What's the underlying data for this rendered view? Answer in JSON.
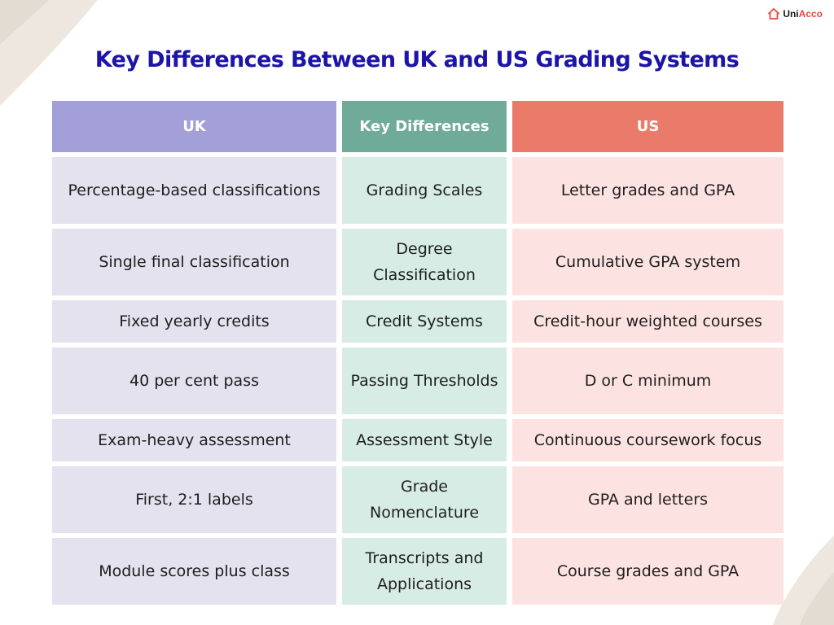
{
  "brand": {
    "name_part1": "Uni",
    "name_part2": "Acco",
    "icon": "house-icon",
    "accent_color": "#e8483c"
  },
  "title": "Key Differences Between UK and US Grading Systems",
  "colors": {
    "title": "#1d14a8",
    "uk_header": "#a39fd8",
    "key_header": "#6fab98",
    "us_header": "#ea7a6a",
    "uk_cell": "#e3e2ee",
    "key_cell": "#d6ece4",
    "us_cell": "#fde2e2"
  },
  "table": {
    "headers": {
      "uk": "UK",
      "key": "Key Differences",
      "us": "US"
    },
    "rows": [
      {
        "uk": "Percentage-based classifications",
        "key": "Grading Scales",
        "us": "Letter grades and GPA"
      },
      {
        "uk": "Single final classification",
        "key": "Degree Classification",
        "us": "Cumulative GPA system"
      },
      {
        "uk": "Fixed yearly credits",
        "key": "Credit Systems",
        "us": "Credit-hour weighted courses"
      },
      {
        "uk": "40 per cent pass",
        "key": "Passing Thresholds",
        "us": "D or C minimum"
      },
      {
        "uk": "Exam-heavy assessment",
        "key": "Assessment Style",
        "us": "Continuous coursework focus"
      },
      {
        "uk": "First, 2:1 labels",
        "key": "Grade Nomenclature",
        "us": "GPA and letters"
      },
      {
        "uk": "Module scores plus class",
        "key": "Transcripts and Applications",
        "us": "Course grades and GPA"
      }
    ]
  }
}
